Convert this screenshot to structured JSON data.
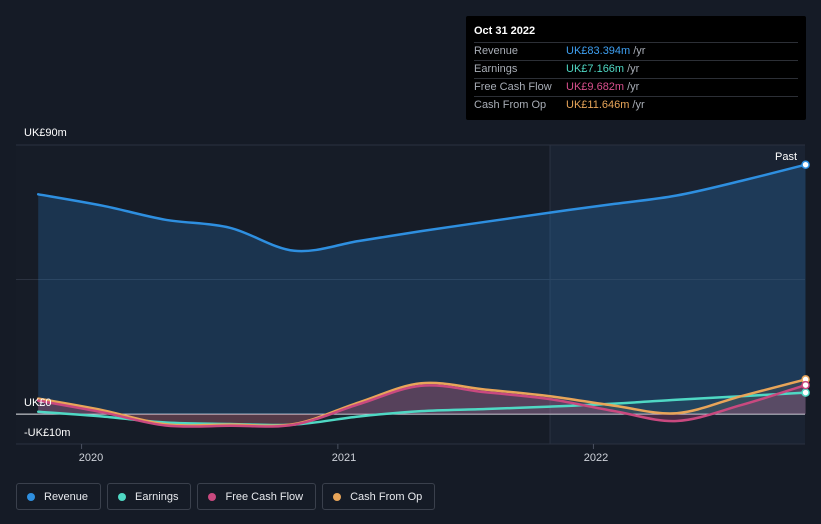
{
  "chart_data": {
    "type": "area",
    "title": "",
    "xlabel": "",
    "ylabel": "",
    "ylim": [
      -10,
      90
    ],
    "y_tick_labels": [
      "UK£90m",
      "UK£0",
      "-UK£10m"
    ],
    "x_tick_labels": [
      "2020",
      "2021",
      "2022"
    ],
    "past_label": "Past",
    "x": [
      "2019-10-31",
      "2020-01-31",
      "2020-04-30",
      "2020-07-31",
      "2020-10-31",
      "2021-01-31",
      "2021-04-30",
      "2021-07-31",
      "2021-10-31",
      "2022-01-31",
      "2022-04-30",
      "2022-07-31",
      "2022-10-31"
    ],
    "series": [
      {
        "name": "Revenue",
        "color": "#2e8fe0",
        "values": [
          73.5,
          69.7,
          65.0,
          62.3,
          54.6,
          57.9,
          61.2,
          64.3,
          67.4,
          70.3,
          73.1,
          78.0,
          83.4
        ]
      },
      {
        "name": "Earnings",
        "color": "#4fd8c4",
        "values": [
          0.8,
          -0.8,
          -2.8,
          -3.3,
          -3.5,
          -0.8,
          1.0,
          1.7,
          2.5,
          3.5,
          4.8,
          6.0,
          7.2
        ]
      },
      {
        "name": "Free Cash Flow",
        "color": "#c9497f",
        "values": [
          4.5,
          0.6,
          -3.8,
          -3.9,
          -3.5,
          3.3,
          9.5,
          7.3,
          5.0,
          1.0,
          -2.3,
          3.0,
          9.7
        ]
      },
      {
        "name": "Cash From Op",
        "color": "#e8a559",
        "values": [
          5.2,
          1.3,
          -3.4,
          -3.5,
          -3.3,
          3.9,
          10.3,
          8.2,
          6.0,
          2.8,
          0.3,
          6.0,
          11.6
        ]
      }
    ],
    "legend_position": "bottom-left",
    "grid": true
  },
  "tooltip": {
    "date": "Oct 31 2022",
    "unit": "/yr",
    "rows": [
      {
        "label": "Revenue",
        "value": "UK£83.394m",
        "color": "#3ea0f2"
      },
      {
        "label": "Earnings",
        "value": "UK£7.166m",
        "color": "#4fd8c4"
      },
      {
        "label": "Free Cash Flow",
        "value": "UK£9.682m",
        "color": "#d9508d"
      },
      {
        "label": "Cash From Op",
        "value": "UK£11.646m",
        "color": "#e8a559"
      }
    ]
  },
  "legend": [
    {
      "label": "Revenue",
      "color": "#2e8fe0"
    },
    {
      "label": "Earnings",
      "color": "#4fd8c4"
    },
    {
      "label": "Free Cash Flow",
      "color": "#c9497f"
    },
    {
      "label": "Cash From Op",
      "color": "#e8a559"
    }
  ]
}
